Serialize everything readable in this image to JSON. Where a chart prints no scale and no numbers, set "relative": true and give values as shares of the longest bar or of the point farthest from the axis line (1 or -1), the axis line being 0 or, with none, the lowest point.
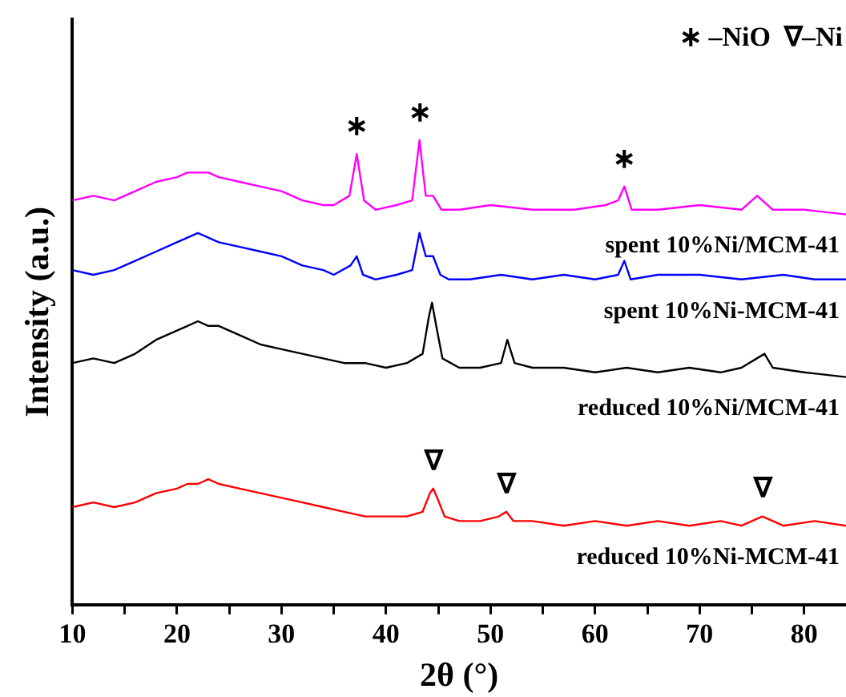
{
  "chart_data": {
    "type": "line",
    "xlabel": "2θ (°)",
    "ylabel": "Intensity (a.u.)",
    "relative": true,
    "xlim": [
      10,
      84
    ],
    "xticks": [
      10,
      {
        "value": 15,
        "label": null
      },
      20,
      {
        "value": 25,
        "label": null
      },
      30,
      {
        "value": 35,
        "label": null
      },
      40,
      {
        "value": 45,
        "label": null
      },
      50,
      {
        "value": 55,
        "label": null
      },
      60,
      {
        "value": 65,
        "label": null
      },
      70,
      {
        "value": 75,
        "label": null
      },
      80
    ],
    "grid": false,
    "legend": false,
    "marker": "none",
    "line_style": "solid",
    "annotations": [
      "∗ –NiO  ∇–Ni",
      {
        "text": "∗",
        "x": 37.2,
        "y": 0.97
      },
      {
        "text": "∗",
        "x": 43.2,
        "y": 1
      },
      {
        "text": "∗",
        "x": 62.8,
        "y": 0.9
      },
      {
        "text": "∇",
        "x": 44.5,
        "y": 0.25
      },
      {
        "text": "∇",
        "x": 51.5,
        "y": 0.2
      },
      {
        "text": "∇",
        "x": 76,
        "y": 0.19
      }
    ],
    "series": [
      {
        "name": "spent 10%Ni/MCM-41",
        "color": "#ff00ff",
        "x": [
          10,
          12,
          14,
          16,
          18,
          20,
          21,
          22,
          23,
          24,
          26,
          28,
          30,
          32,
          34,
          35,
          36.5,
          37.2,
          37.9,
          39,
          41,
          42.5,
          43.2,
          43.8,
          44.5,
          45.3,
          47,
          50,
          54,
          58,
          61,
          62.2,
          62.8,
          63.5,
          66,
          70,
          74,
          75.5,
          77,
          80,
          84
        ],
        "values": [
          0.87,
          0.88,
          0.87,
          0.89,
          0.91,
          0.92,
          0.93,
          0.93,
          0.93,
          0.92,
          0.91,
          0.9,
          0.89,
          0.87,
          0.86,
          0.86,
          0.88,
          0.97,
          0.87,
          0.85,
          0.86,
          0.87,
          1,
          0.88,
          0.88,
          0.85,
          0.85,
          0.86,
          0.85,
          0.85,
          0.86,
          0.87,
          0.9,
          0.85,
          0.85,
          0.86,
          0.85,
          0.88,
          0.85,
          0.85,
          0.84
        ]
      },
      {
        "name": "spent 10%Ni-MCM-41",
        "color": "#0000ff",
        "x": [
          10,
          12,
          14,
          16,
          18,
          20,
          21,
          22,
          23,
          24,
          26,
          28,
          30,
          32,
          34,
          35,
          36.6,
          37.2,
          37.8,
          39,
          41,
          42.5,
          43.2,
          43.8,
          44.5,
          45.2,
          46,
          48,
          51,
          54,
          57,
          60,
          62.2,
          62.8,
          63.4,
          66,
          70,
          74,
          78,
          81,
          84
        ],
        "values": [
          0.72,
          0.71,
          0.72,
          0.74,
          0.76,
          0.78,
          0.79,
          0.8,
          0.79,
          0.78,
          0.77,
          0.76,
          0.75,
          0.73,
          0.72,
          0.71,
          0.73,
          0.75,
          0.71,
          0.7,
          0.71,
          0.72,
          0.8,
          0.75,
          0.75,
          0.71,
          0.7,
          0.7,
          0.71,
          0.7,
          0.71,
          0.7,
          0.71,
          0.74,
          0.7,
          0.71,
          0.71,
          0.7,
          0.71,
          0.7,
          0.7
        ]
      },
      {
        "name": "reduced 10%Ni/MCM-41",
        "color": "#000000",
        "x": [
          10,
          12,
          14,
          16,
          18,
          20,
          21,
          22,
          23,
          24,
          26,
          28,
          30,
          32,
          34,
          36,
          38,
          40,
          42,
          43.5,
          44.1,
          44.4,
          44.8,
          45.4,
          47,
          49,
          51,
          51.6,
          52.3,
          54,
          57,
          60,
          63,
          66,
          69,
          72,
          74,
          76.2,
          77,
          80,
          84
        ],
        "values": [
          0.52,
          0.53,
          0.52,
          0.54,
          0.57,
          0.59,
          0.6,
          0.61,
          0.6,
          0.6,
          0.58,
          0.56,
          0.55,
          0.54,
          0.53,
          0.52,
          0.52,
          0.51,
          0.52,
          0.54,
          0.62,
          0.65,
          0.6,
          0.53,
          0.51,
          0.51,
          0.52,
          0.57,
          0.52,
          0.51,
          0.51,
          0.5,
          0.51,
          0.5,
          0.51,
          0.5,
          0.51,
          0.54,
          0.51,
          0.5,
          0.49
        ]
      },
      {
        "name": "reduced 10%Ni-MCM-41",
        "color": "#ff0000",
        "x": [
          10,
          12,
          14,
          16,
          18,
          20,
          21,
          22,
          23,
          24,
          26,
          28,
          30,
          32,
          34,
          36,
          38,
          40,
          42,
          43.5,
          44.2,
          44.5,
          44.9,
          45.6,
          47,
          49,
          50.8,
          51.5,
          52.2,
          54,
          57,
          60,
          63,
          66,
          69,
          72,
          74,
          76,
          78,
          81,
          84
        ],
        "values": [
          0.21,
          0.22,
          0.21,
          0.22,
          0.24,
          0.25,
          0.26,
          0.26,
          0.27,
          0.26,
          0.25,
          0.24,
          0.23,
          0.22,
          0.21,
          0.2,
          0.19,
          0.19,
          0.19,
          0.2,
          0.24,
          0.25,
          0.23,
          0.19,
          0.18,
          0.18,
          0.19,
          0.2,
          0.18,
          0.18,
          0.17,
          0.18,
          0.17,
          0.18,
          0.17,
          0.18,
          0.17,
          0.19,
          0.17,
          0.18,
          0.17
        ]
      }
    ]
  }
}
